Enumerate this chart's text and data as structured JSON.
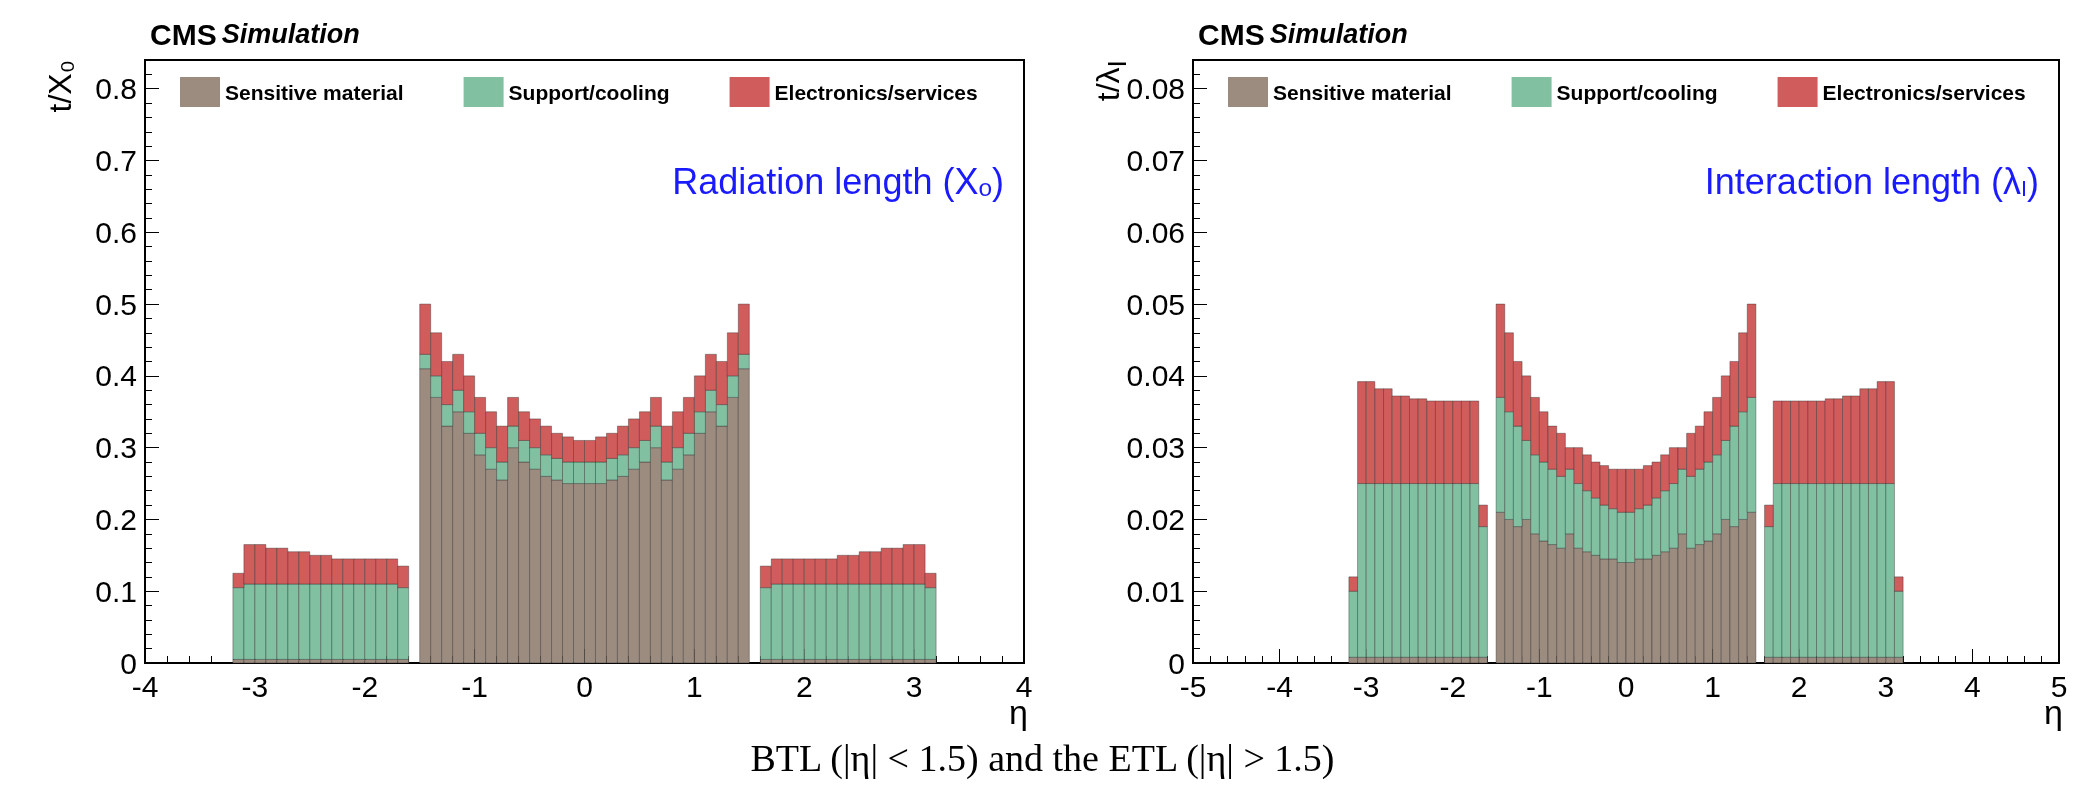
{
  "chart_data": [
    {
      "type": "bar",
      "title": "CMS",
      "subtitle": "Simulation",
      "xlabel": "η",
      "ylabel": "t/X₀",
      "annotations": [
        "Radiation length (Xₒ)"
      ],
      "x": [
        -3.15,
        -3.05,
        -2.95,
        -2.85,
        -2.75,
        -2.65,
        -2.55,
        -2.45,
        -2.35,
        -2.25,
        -2.15,
        -2.05,
        -1.95,
        -1.85,
        -1.75,
        -1.65,
        -1.55,
        -1.45,
        -1.35,
        -1.25,
        -1.15,
        -1.05,
        -0.95,
        -0.85,
        -0.75,
        -0.65,
        -0.55,
        -0.45,
        -0.35,
        -0.25,
        -0.15,
        -0.05,
        0.05,
        0.15,
        0.25,
        0.35,
        0.45,
        0.55,
        0.65,
        0.75,
        0.85,
        0.95,
        1.05,
        1.15,
        1.25,
        1.35,
        1.45,
        1.55,
        1.65,
        1.75,
        1.85,
        1.95,
        2.05,
        2.15,
        2.25,
        2.35,
        2.45,
        2.55,
        2.65,
        2.75,
        2.85,
        2.95,
        3.05,
        3.15
      ],
      "stacked": true,
      "legend": "top",
      "grid": false,
      "xlim": [
        -4,
        4
      ],
      "xticks": [
        -4,
        -3,
        -2,
        -1,
        0,
        1,
        2,
        3,
        4
      ],
      "ylim": [
        0,
        0.84
      ],
      "yticks": [
        0,
        0.1,
        0.2,
        0.3,
        0.4,
        0.5,
        0.6,
        0.7,
        0.8
      ],
      "series": [
        {
          "name": "Sensitive material",
          "color": "#9c8b7f",
          "values": [
            0.005,
            0.005,
            0.005,
            0.005,
            0.005,
            0.005,
            0.005,
            0.005,
            0.005,
            0.005,
            0.005,
            0.005,
            0.005,
            0.005,
            0.005,
            0.005,
            0,
            0.41,
            0.37,
            0.33,
            0.35,
            0.32,
            0.29,
            0.27,
            0.255,
            0.3,
            0.28,
            0.27,
            0.26,
            0.255,
            0.25,
            0.25,
            0.25,
            0.25,
            0.255,
            0.26,
            0.27,
            0.28,
            0.3,
            0.255,
            0.27,
            0.29,
            0.32,
            0.35,
            0.33,
            0.37,
            0.41,
            0,
            0.005,
            0.005,
            0.005,
            0.005,
            0.005,
            0.005,
            0.005,
            0.005,
            0.005,
            0.005,
            0.005,
            0.005,
            0.005,
            0.005,
            0.005,
            0.005
          ]
        },
        {
          "name": "Support/cooling",
          "color": "#82c0a2",
          "values": [
            0.1,
            0.105,
            0.105,
            0.105,
            0.105,
            0.105,
            0.105,
            0.105,
            0.105,
            0.105,
            0.105,
            0.105,
            0.105,
            0.105,
            0.105,
            0.1,
            0,
            0.02,
            0.03,
            0.03,
            0.03,
            0.03,
            0.03,
            0.03,
            0.025,
            0.03,
            0.03,
            0.03,
            0.03,
            0.03,
            0.03,
            0.03,
            0.03,
            0.03,
            0.03,
            0.03,
            0.03,
            0.03,
            0.03,
            0.025,
            0.03,
            0.03,
            0.03,
            0.03,
            0.03,
            0.03,
            0.02,
            0,
            0.1,
            0.105,
            0.105,
            0.105,
            0.105,
            0.105,
            0.105,
            0.105,
            0.105,
            0.105,
            0.105,
            0.105,
            0.105,
            0.105,
            0.105,
            0.1
          ]
        },
        {
          "name": "Electronics/services",
          "color": "#d05c5c",
          "values": [
            0.02,
            0.055,
            0.055,
            0.05,
            0.05,
            0.045,
            0.045,
            0.04,
            0.04,
            0.035,
            0.035,
            0.035,
            0.035,
            0.035,
            0.035,
            0.03,
            0,
            0.07,
            0.06,
            0.06,
            0.05,
            0.05,
            0.05,
            0.05,
            0.05,
            0.04,
            0.04,
            0.04,
            0.04,
            0.035,
            0.035,
            0.03,
            0.03,
            0.035,
            0.035,
            0.04,
            0.04,
            0.04,
            0.04,
            0.05,
            0.05,
            0.05,
            0.05,
            0.05,
            0.06,
            0.06,
            0.07,
            0,
            0.03,
            0.035,
            0.035,
            0.035,
            0.035,
            0.035,
            0.035,
            0.04,
            0.04,
            0.045,
            0.045,
            0.05,
            0.05,
            0.055,
            0.055,
            0.02
          ]
        }
      ]
    },
    {
      "type": "bar",
      "title": "CMS",
      "subtitle": "Simulation",
      "xlabel": "η",
      "ylabel": "t/λ$_{I}$",
      "annotations": [
        "Interaction length (λ$_{I}$)",
        "BTL (|η| < 1.5) and the ETL (|η| > 1.5)"
      ],
      "x": [
        -3.15,
        -3.05,
        -2.95,
        -2.85,
        -2.75,
        -2.65,
        -2.55,
        -2.45,
        -2.35,
        -2.25,
        -2.15,
        -2.05,
        -1.95,
        -1.85,
        -1.75,
        -1.65,
        -1.55,
        -1.45,
        -1.35,
        -1.25,
        -1.15,
        -1.05,
        -0.95,
        -0.85,
        -0.75,
        -0.65,
        -0.55,
        -0.45,
        -0.35,
        -0.25,
        -0.15,
        -0.05,
        0.05,
        0.15,
        0.25,
        0.35,
        0.45,
        0.55,
        0.65,
        0.75,
        0.85,
        0.95,
        1.05,
        1.15,
        1.25,
        1.35,
        1.45,
        1.55,
        1.65,
        1.75,
        1.85,
        1.95,
        2.05,
        2.15,
        2.25,
        2.35,
        2.45,
        2.55,
        2.65,
        2.75,
        2.85,
        2.95,
        3.05,
        3.15
      ],
      "stacked": true,
      "legend": "top",
      "grid": false,
      "xlim": [
        -5,
        5
      ],
      "xticks": [
        -5,
        -4,
        -3,
        -2,
        -1,
        0,
        1,
        2,
        3,
        4,
        5
      ],
      "ylim": [
        0,
        0.084
      ],
      "yticks": [
        0,
        0.01,
        0.02,
        0.03,
        0.04,
        0.05,
        0.06,
        0.07,
        0.08
      ],
      "series": [
        {
          "name": "Sensitive material",
          "color": "#9c8b7f",
          "values": [
            0.0008,
            0.0008,
            0.0008,
            0.0008,
            0.0008,
            0.0008,
            0.0008,
            0.0008,
            0.0008,
            0.0008,
            0.0008,
            0.0008,
            0.0008,
            0.0008,
            0.0008,
            0.0008,
            0,
            0.021,
            0.02,
            0.019,
            0.02,
            0.018,
            0.017,
            0.0165,
            0.016,
            0.018,
            0.016,
            0.0155,
            0.015,
            0.0145,
            0.0145,
            0.014,
            0.014,
            0.0145,
            0.0145,
            0.015,
            0.0155,
            0.016,
            0.018,
            0.016,
            0.0165,
            0.017,
            0.018,
            0.02,
            0.019,
            0.02,
            0.021,
            0,
            0.0008,
            0.0008,
            0.0008,
            0.0008,
            0.0008,
            0.0008,
            0.0008,
            0.0008,
            0.0008,
            0.0008,
            0.0008,
            0.0008,
            0.0008,
            0.0008,
            0.0008,
            0.0008
          ]
        },
        {
          "name": "Support/cooling",
          "color": "#82c0a2",
          "values": [
            0.0092,
            0.0242,
            0.0242,
            0.0242,
            0.0242,
            0.0242,
            0.0242,
            0.0242,
            0.0242,
            0.0242,
            0.0242,
            0.0242,
            0.0242,
            0.0242,
            0.0242,
            0.0182,
            0,
            0.016,
            0.015,
            0.014,
            0.011,
            0.011,
            0.011,
            0.0105,
            0.01,
            0.009,
            0.009,
            0.0085,
            0.008,
            0.0075,
            0.007,
            0.007,
            0.007,
            0.007,
            0.0075,
            0.008,
            0.0085,
            0.009,
            0.009,
            0.01,
            0.0105,
            0.011,
            0.011,
            0.011,
            0.014,
            0.015,
            0.016,
            0,
            0.0182,
            0.0242,
            0.0242,
            0.0242,
            0.0242,
            0.0242,
            0.0242,
            0.0242,
            0.0242,
            0.0242,
            0.0242,
            0.0242,
            0.0242,
            0.0242,
            0.0242,
            0.0092
          ]
        },
        {
          "name": "Electronics/services",
          "color": "#d05c5c",
          "values": [
            0.002,
            0.0142,
            0.0142,
            0.0132,
            0.0132,
            0.0122,
            0.0122,
            0.0118,
            0.0118,
            0.0115,
            0.0115,
            0.0115,
            0.0115,
            0.0115,
            0.0115,
            0.003,
            0,
            0.013,
            0.011,
            0.009,
            0.009,
            0.008,
            0.007,
            0.006,
            0.006,
            0.003,
            0.005,
            0.005,
            0.005,
            0.0055,
            0.0055,
            0.006,
            0.006,
            0.0055,
            0.0055,
            0.005,
            0.005,
            0.005,
            0.003,
            0.006,
            0.006,
            0.007,
            0.008,
            0.009,
            0.009,
            0.011,
            0.013,
            0,
            0.003,
            0.0115,
            0.0115,
            0.0115,
            0.0115,
            0.0115,
            0.0115,
            0.0118,
            0.0118,
            0.0122,
            0.0122,
            0.0132,
            0.0132,
            0.0142,
            0.0142,
            0.002
          ]
        }
      ]
    }
  ]
}
